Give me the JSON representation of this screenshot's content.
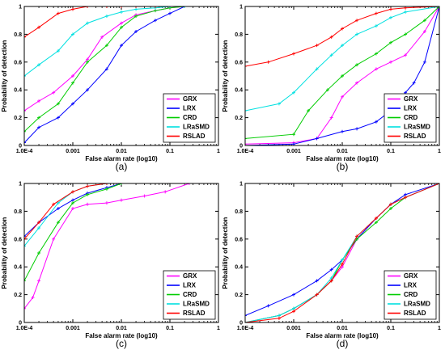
{
  "chart_data": [
    {
      "type": "line",
      "panel_label": "(a)",
      "xlabel": "False alarm rate (log10)",
      "ylabel": "Probability of detection",
      "xscale": "log",
      "xlim": [
        0.0001,
        1
      ],
      "ylim": [
        0,
        1
      ],
      "xticks": [
        0.0001,
        0.001,
        0.01,
        0.1,
        1
      ],
      "xtick_labels": [
        "1.0E-4",
        "0.001",
        "0.01",
        "0.1",
        "1"
      ],
      "yticks": [
        0,
        0.2,
        0.4,
        0.6,
        0.8,
        1
      ],
      "ytick_labels": [
        "0",
        "0.2",
        "0.4",
        "0.6",
        "0.8",
        "1"
      ],
      "legend_position": "bottom-right",
      "series": [
        {
          "name": "GRX",
          "color": "#ff00ff",
          "x": [
            0.0001,
            0.0002,
            0.0004,
            0.001,
            0.002,
            0.004,
            0.01,
            0.02,
            0.05,
            0.1,
            0.2
          ],
          "y": [
            0.25,
            0.32,
            0.38,
            0.5,
            0.62,
            0.78,
            0.88,
            0.94,
            0.97,
            0.99,
            1.0
          ]
        },
        {
          "name": "LRX",
          "color": "#0000ff",
          "x": [
            0.0001,
            0.0002,
            0.0005,
            0.001,
            0.002,
            0.005,
            0.01,
            0.02,
            0.05,
            0.1,
            0.2
          ],
          "y": [
            0.02,
            0.13,
            0.2,
            0.3,
            0.4,
            0.55,
            0.72,
            0.82,
            0.9,
            0.95,
            1.0
          ]
        },
        {
          "name": "CRD",
          "color": "#00cc00",
          "x": [
            0.0001,
            0.0002,
            0.0005,
            0.001,
            0.002,
            0.005,
            0.01,
            0.02,
            0.05,
            0.1,
            0.2
          ],
          "y": [
            0.1,
            0.2,
            0.3,
            0.45,
            0.6,
            0.72,
            0.85,
            0.93,
            0.97,
            0.99,
            1.0
          ]
        },
        {
          "name": "LRaSMD",
          "color": "#00e0e0",
          "x": [
            0.0001,
            0.0002,
            0.0005,
            0.001,
            0.002,
            0.005,
            0.01,
            0.02,
            0.05,
            0.1,
            0.2
          ],
          "y": [
            0.5,
            0.58,
            0.68,
            0.8,
            0.88,
            0.93,
            0.96,
            0.98,
            0.99,
            1.0,
            1.0
          ]
        },
        {
          "name": "RSLAD",
          "color": "#ff0000",
          "x": [
            0.0001,
            0.0002,
            0.0005,
            0.001,
            0.002,
            0.005,
            0.01,
            0.02,
            0.05
          ],
          "y": [
            0.78,
            0.85,
            0.95,
            0.98,
            1.0,
            1.0,
            1.0,
            1.0,
            1.0
          ]
        }
      ]
    },
    {
      "type": "line",
      "panel_label": "(b)",
      "xlabel": "False alarm rate (log10)",
      "ylabel": "Probability of detection",
      "xscale": "log",
      "xlim": [
        0.0001,
        1
      ],
      "ylim": [
        0,
        1
      ],
      "xticks": [
        0.0001,
        0.001,
        0.01,
        0.1,
        1
      ],
      "xtick_labels": [
        "1.0E-4",
        "0.001",
        "0.01",
        "0.1",
        "1"
      ],
      "yticks": [
        0,
        0.2,
        0.4,
        0.6,
        0.8,
        1
      ],
      "ytick_labels": [
        "0",
        "0.2",
        "0.4",
        "0.6",
        "0.8",
        "1"
      ],
      "legend_position": "bottom-right",
      "series": [
        {
          "name": "GRX",
          "color": "#ff00ff",
          "x": [
            0.0001,
            0.001,
            0.003,
            0.006,
            0.01,
            0.02,
            0.05,
            0.1,
            0.2,
            0.5,
            1
          ],
          "y": [
            0.01,
            0.02,
            0.05,
            0.2,
            0.35,
            0.45,
            0.55,
            0.6,
            0.65,
            0.82,
            1.0
          ]
        },
        {
          "name": "LRX",
          "color": "#0000ff",
          "x": [
            0.0001,
            0.001,
            0.003,
            0.01,
            0.02,
            0.05,
            0.1,
            0.2,
            0.3,
            0.5,
            1
          ],
          "y": [
            0.0,
            0.01,
            0.05,
            0.1,
            0.12,
            0.17,
            0.25,
            0.38,
            0.45,
            0.6,
            1.0
          ]
        },
        {
          "name": "CRD",
          "color": "#00cc00",
          "x": [
            0.0001,
            0.001,
            0.002,
            0.005,
            0.01,
            0.02,
            0.05,
            0.1,
            0.2,
            0.5,
            1
          ],
          "y": [
            0.05,
            0.08,
            0.25,
            0.4,
            0.5,
            0.58,
            0.66,
            0.74,
            0.8,
            0.9,
            1.0
          ]
        },
        {
          "name": "LRaSMD",
          "color": "#00e0e0",
          "x": [
            0.0001,
            0.0005,
            0.001,
            0.003,
            0.006,
            0.01,
            0.02,
            0.05,
            0.1,
            0.2,
            1
          ],
          "y": [
            0.25,
            0.3,
            0.38,
            0.55,
            0.65,
            0.72,
            0.8,
            0.86,
            0.92,
            0.96,
            1.0
          ]
        },
        {
          "name": "RSLAD",
          "color": "#ff0000",
          "x": [
            0.0001,
            0.0003,
            0.001,
            0.003,
            0.006,
            0.01,
            0.02,
            0.05,
            0.1,
            0.2,
            1
          ],
          "y": [
            0.57,
            0.6,
            0.66,
            0.72,
            0.78,
            0.84,
            0.9,
            0.95,
            0.98,
            0.99,
            1.0
          ]
        }
      ]
    },
    {
      "type": "line",
      "panel_label": "(c)",
      "xlabel": "False alarm rate (log10)",
      "ylabel": "Probability of detection",
      "xscale": "log",
      "xlim": [
        0.0001,
        1
      ],
      "ylim": [
        0,
        1
      ],
      "xticks": [
        0.0001,
        0.001,
        0.01,
        0.1,
        1
      ],
      "xtick_labels": [
        "1.0E-4",
        "0.001",
        "0.01",
        "0.1",
        "1"
      ],
      "yticks": [
        0,
        0.2,
        0.4,
        0.6,
        0.8,
        1
      ],
      "ytick_labels": [
        "0",
        "0.2",
        "0.4",
        "0.6",
        "0.8",
        "1"
      ],
      "legend_position": "bottom-right",
      "series": [
        {
          "name": "GRX",
          "color": "#ff00ff",
          "x": [
            0.0001,
            0.00015,
            0.0002,
            0.0004,
            0.001,
            0.002,
            0.005,
            0.01,
            0.03,
            0.08,
            0.25
          ],
          "y": [
            0.1,
            0.18,
            0.3,
            0.6,
            0.82,
            0.85,
            0.86,
            0.88,
            0.91,
            0.94,
            1.0
          ]
        },
        {
          "name": "LRX",
          "color": "#0000ff",
          "x": [
            0.0001,
            0.0002,
            0.0005,
            0.001,
            0.002,
            0.005,
            0.01
          ],
          "y": [
            0.62,
            0.72,
            0.82,
            0.88,
            0.93,
            0.97,
            1.0
          ]
        },
        {
          "name": "CRD",
          "color": "#00cc00",
          "x": [
            0.0001,
            0.0002,
            0.0005,
            0.001,
            0.002,
            0.005,
            0.01
          ],
          "y": [
            0.3,
            0.5,
            0.72,
            0.86,
            0.92,
            0.96,
            1.0
          ]
        },
        {
          "name": "LRaSMD",
          "color": "#00e0e0",
          "x": [
            0.0001,
            0.0002,
            0.0005,
            0.001,
            0.002,
            0.005
          ],
          "y": [
            0.55,
            0.68,
            0.86,
            0.94,
            0.98,
            1.0
          ]
        },
        {
          "name": "RSLAD",
          "color": "#ff0000",
          "x": [
            0.0001,
            0.0002,
            0.0004,
            0.001,
            0.002,
            0.005
          ],
          "y": [
            0.6,
            0.72,
            0.85,
            0.94,
            0.98,
            1.0
          ]
        }
      ]
    },
    {
      "type": "line",
      "panel_label": "(d)",
      "xlabel": "False alarm rate (log10)",
      "ylabel": "Probability of detection",
      "xscale": "log",
      "xlim": [
        0.0001,
        1
      ],
      "ylim": [
        0,
        1
      ],
      "xticks": [
        0.0001,
        0.001,
        0.01,
        0.1,
        1
      ],
      "xtick_labels": [
        "1.0E-4",
        "0.001",
        "0.01",
        "0.1",
        "1"
      ],
      "yticks": [
        0,
        0.2,
        0.4,
        0.6,
        0.8,
        1
      ],
      "ytick_labels": [
        "0",
        "0.2",
        "0.4",
        "0.6",
        "0.8",
        "1"
      ],
      "legend_position": "bottom-right",
      "series": [
        {
          "name": "GRX",
          "color": "#ff00ff",
          "x": [
            0.0001,
            0.0005,
            0.001,
            0.003,
            0.006,
            0.01,
            0.02,
            0.05,
            0.1,
            0.2,
            1
          ],
          "y": [
            0.0,
            0.05,
            0.1,
            0.2,
            0.3,
            0.4,
            0.6,
            0.75,
            0.85,
            0.9,
            1.0
          ]
        },
        {
          "name": "LRX",
          "color": "#0000ff",
          "x": [
            0.0001,
            0.0003,
            0.001,
            0.003,
            0.006,
            0.01,
            0.02,
            0.05,
            0.1,
            0.2,
            1
          ],
          "y": [
            0.05,
            0.12,
            0.2,
            0.3,
            0.38,
            0.45,
            0.6,
            0.75,
            0.85,
            0.92,
            1.0
          ]
        },
        {
          "name": "CRD",
          "color": "#00cc00",
          "x": [
            0.0001,
            0.0005,
            0.001,
            0.003,
            0.006,
            0.01,
            0.02,
            0.05,
            0.1,
            0.2,
            1
          ],
          "y": [
            0.0,
            0.05,
            0.1,
            0.2,
            0.3,
            0.45,
            0.6,
            0.72,
            0.82,
            0.9,
            1.0
          ]
        },
        {
          "name": "LRaSMD",
          "color": "#00e0e0",
          "x": [
            0.0001,
            0.0005,
            0.001,
            0.003,
            0.006,
            0.01,
            0.02,
            0.05,
            0.1,
            0.2,
            1
          ],
          "y": [
            0.0,
            0.05,
            0.1,
            0.2,
            0.32,
            0.45,
            0.62,
            0.75,
            0.85,
            0.9,
            1.0
          ]
        },
        {
          "name": "RSLAD",
          "color": "#ff0000",
          "x": [
            0.0001,
            0.0005,
            0.001,
            0.003,
            0.006,
            0.01,
            0.02,
            0.05,
            0.1,
            0.2,
            1
          ],
          "y": [
            0.0,
            0.03,
            0.08,
            0.2,
            0.3,
            0.42,
            0.62,
            0.75,
            0.85,
            0.9,
            1.0
          ]
        }
      ]
    }
  ]
}
